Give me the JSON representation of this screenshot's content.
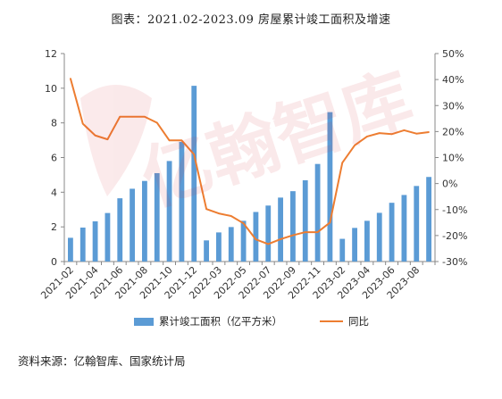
{
  "title": "图表：2021.02-2023.09 房屋累计竣工面积及增速",
  "source": "资料来源：亿翰智库、国家统计局",
  "watermark_text": "亿翰智库",
  "chart_data": {
    "type": "bar",
    "categories": [
      "2021-02",
      "2021-03",
      "2021-04",
      "2021-05",
      "2021-06",
      "2021-07",
      "2021-08",
      "2021-09",
      "2021-10",
      "2021-11",
      "2021-12",
      "2022-02",
      "2022-03",
      "2022-04",
      "2022-05",
      "2022-06",
      "2022-07",
      "2022-08",
      "2022-09",
      "2022-10",
      "2022-11",
      "2022-12",
      "2023-02",
      "2023-03",
      "2023-04",
      "2023-05",
      "2023-06",
      "2023-07",
      "2023-08",
      "2023-09"
    ],
    "tick_labels": [
      "2021-02",
      "2021-04",
      "2021-06",
      "2021-08",
      "2021-10",
      "2021-12",
      "2022-03",
      "2022-05",
      "2022-07",
      "2022-09",
      "2022-11",
      "2023-02",
      "2023-04",
      "2023-06",
      "2023-08"
    ],
    "series": [
      {
        "name": "累计竣工面积（亿平方米）",
        "type": "bar",
        "axis": "left",
        "color": "#5B9BD5",
        "values": [
          1.37,
          1.96,
          2.32,
          2.8,
          3.65,
          4.2,
          4.65,
          5.1,
          5.8,
          6.9,
          10.14,
          1.22,
          1.68,
          1.99,
          2.35,
          2.86,
          3.23,
          3.69,
          4.06,
          4.69,
          5.63,
          8.62,
          1.31,
          1.94,
          2.35,
          2.81,
          3.39,
          3.84,
          4.36,
          4.88
        ]
      },
      {
        "name": "同比",
        "type": "line",
        "axis": "right",
        "color": "#ED7D31",
        "values": [
          40.4,
          23.0,
          18.5,
          17.0,
          25.7,
          25.7,
          25.7,
          23.4,
          16.6,
          16.6,
          11.2,
          -9.8,
          -11.5,
          -12.5,
          -15.3,
          -21.5,
          -23.3,
          -21.4,
          -19.9,
          -18.7,
          -18.7,
          -15.0,
          8.0,
          14.7,
          18.1,
          19.4,
          19.0,
          20.5,
          19.2,
          19.8
        ]
      }
    ],
    "ylim_left": [
      0,
      12
    ],
    "yticks_left": [
      0,
      2,
      4,
      6,
      8,
      10,
      12
    ],
    "ylim_right": [
      -30,
      50
    ],
    "yticks_right": [
      "-30%",
      "-20%",
      "-10%",
      "0%",
      "10%",
      "20%",
      "30%",
      "40%",
      "50%"
    ],
    "legend_position": "bottom",
    "grid": false
  }
}
